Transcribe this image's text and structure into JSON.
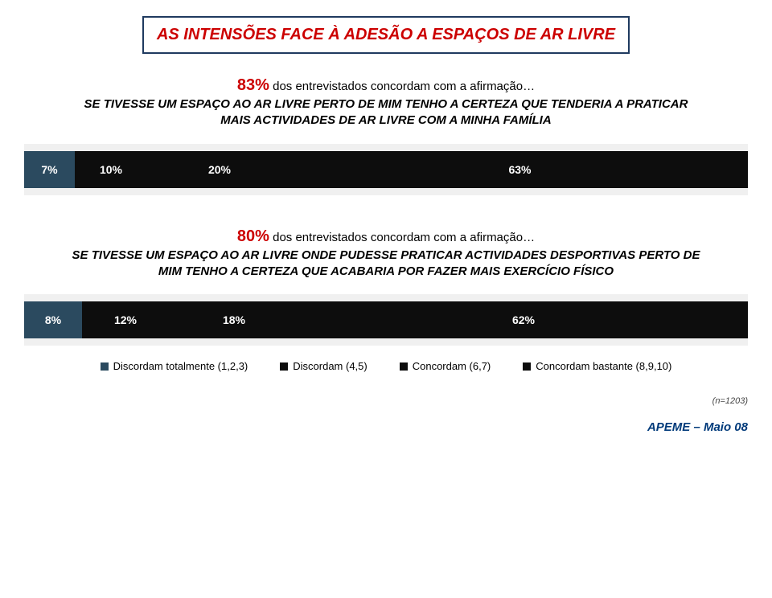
{
  "title": "AS INTENSÕES FACE À ADESÃO A ESPAÇOS DE AR LIVRE",
  "title_color": "#cc0000",
  "title_border": "#1f3a5f",
  "block1": {
    "pct": "83%",
    "pct_tail": "dos entrevistados concordam com a afirmação…",
    "statement_line1": "SE TIVESSE UM ESPAÇO AO AR LIVRE PERTO DE MIM TENHO A CERTEZA QUE TENDERIA A PRATICAR",
    "statement_line2": "MAIS ACTIVIDADES DE AR LIVRE COM A MINHA FAMÍLIA",
    "chart": {
      "type": "stacked-bar",
      "background": "#f0f0f0",
      "segments": [
        {
          "label": "7%",
          "value": 7,
          "color": "#2b4a5f"
        },
        {
          "label": "10%",
          "value": 10,
          "color": "#0d0d0d"
        },
        {
          "label": "20%",
          "value": 20,
          "color": "#0d0d0d"
        },
        {
          "label": "63%",
          "value": 63,
          "color": "#0d0d0d"
        }
      ]
    }
  },
  "block2": {
    "pct": "80%",
    "pct_tail": "dos entrevistados concordam com a afirmação…",
    "statement_line1": "SE TIVESSE UM ESPAÇO AO AR LIVRE ONDE PUDESSE PRATICAR ACTIVIDADES DESPORTIVAS PERTO DE",
    "statement_line2": "MIM TENHO A CERTEZA QUE ACABARIA POR FAZER MAIS EXERCÍCIO FÍSICO",
    "chart": {
      "type": "stacked-bar",
      "background": "#f0f0f0",
      "segments": [
        {
          "label": "8%",
          "value": 8,
          "color": "#2b4a5f"
        },
        {
          "label": "12%",
          "value": 12,
          "color": "#0d0d0d"
        },
        {
          "label": "18%",
          "value": 18,
          "color": "#0d0d0d"
        },
        {
          "label": "62%",
          "value": 62,
          "color": "#0d0d0d"
        }
      ]
    }
  },
  "legend": [
    {
      "label": "Discordam totalmente (1,2,3)",
      "color": "#2b4a5f"
    },
    {
      "label": "Discordam (4,5)",
      "color": "#0d0d0d"
    },
    {
      "label": "Concordam (6,7)",
      "color": "#0d0d0d"
    },
    {
      "label": "Concordam bastante (8,9,10)",
      "color": "#0d0d0d"
    }
  ],
  "footnote": "(n=1203)",
  "footer": "APEME – Maio 08",
  "footer_color": "#003a7a"
}
